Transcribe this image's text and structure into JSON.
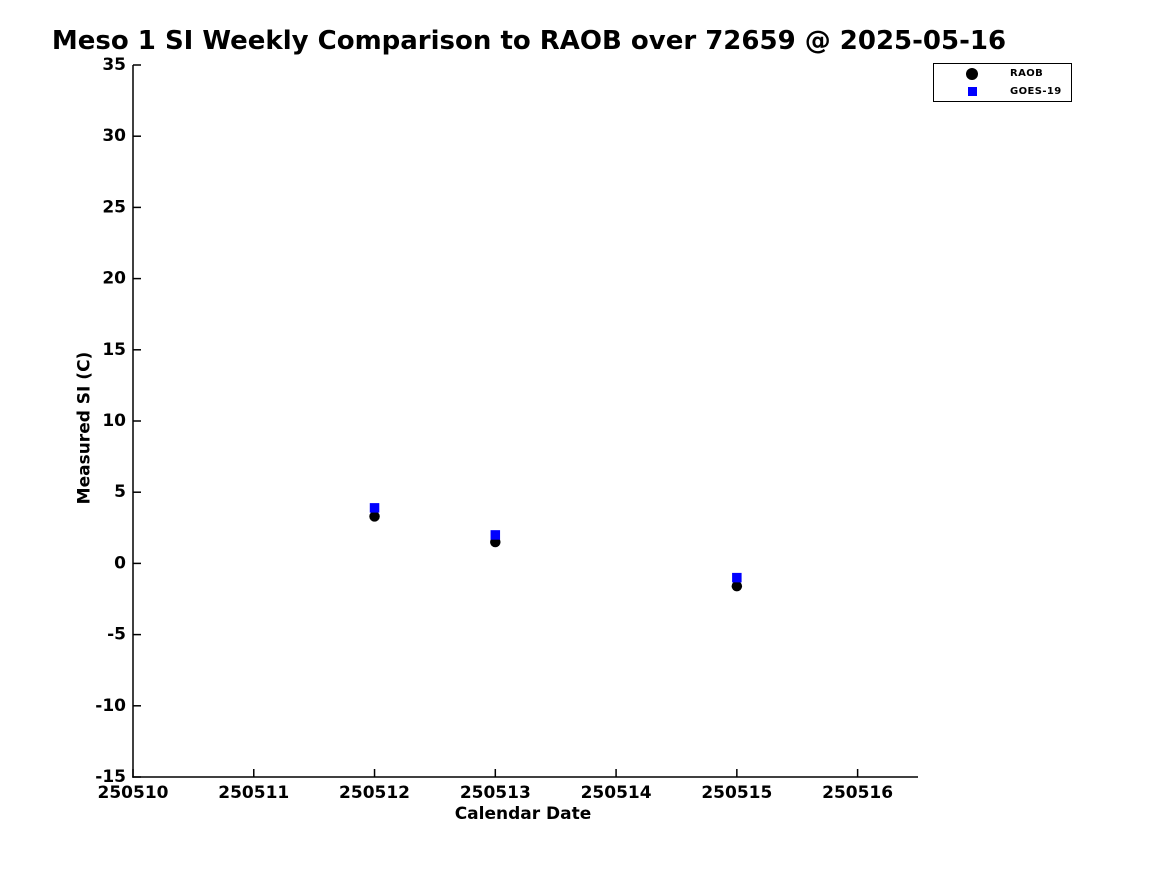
{
  "title": "Meso 1 SI Weekly Comparison to RAOB over 72659 @ 2025-05-16",
  "chart_data": {
    "type": "scatter",
    "title": "Meso 1 SI Weekly Comparison to RAOB over 72659 @ 2025-05-16",
    "xlabel": "Calendar Date",
    "ylabel": "Measured SI (C)",
    "xlim": [
      250510,
      250516.5
    ],
    "ylim": [
      -15,
      35
    ],
    "x_ticks": [
      250510,
      250511,
      250512,
      250513,
      250514,
      250515,
      250516
    ],
    "y_ticks": [
      -15,
      -10,
      -5,
      0,
      5,
      10,
      15,
      20,
      25,
      30,
      35
    ],
    "grid": false,
    "legend_position": "top-right-above-plot",
    "series": [
      {
        "name": "RAOB",
        "marker": "circle",
        "color": "#000000",
        "x": [
          250512,
          250513,
          250515
        ],
        "y": [
          3.3,
          1.5,
          -1.6
        ]
      },
      {
        "name": "GOES-19",
        "marker": "square",
        "color": "#0000ff",
        "x": [
          250512,
          250513,
          250515
        ],
        "y": [
          3.9,
          2.0,
          -1.0
        ]
      }
    ]
  }
}
